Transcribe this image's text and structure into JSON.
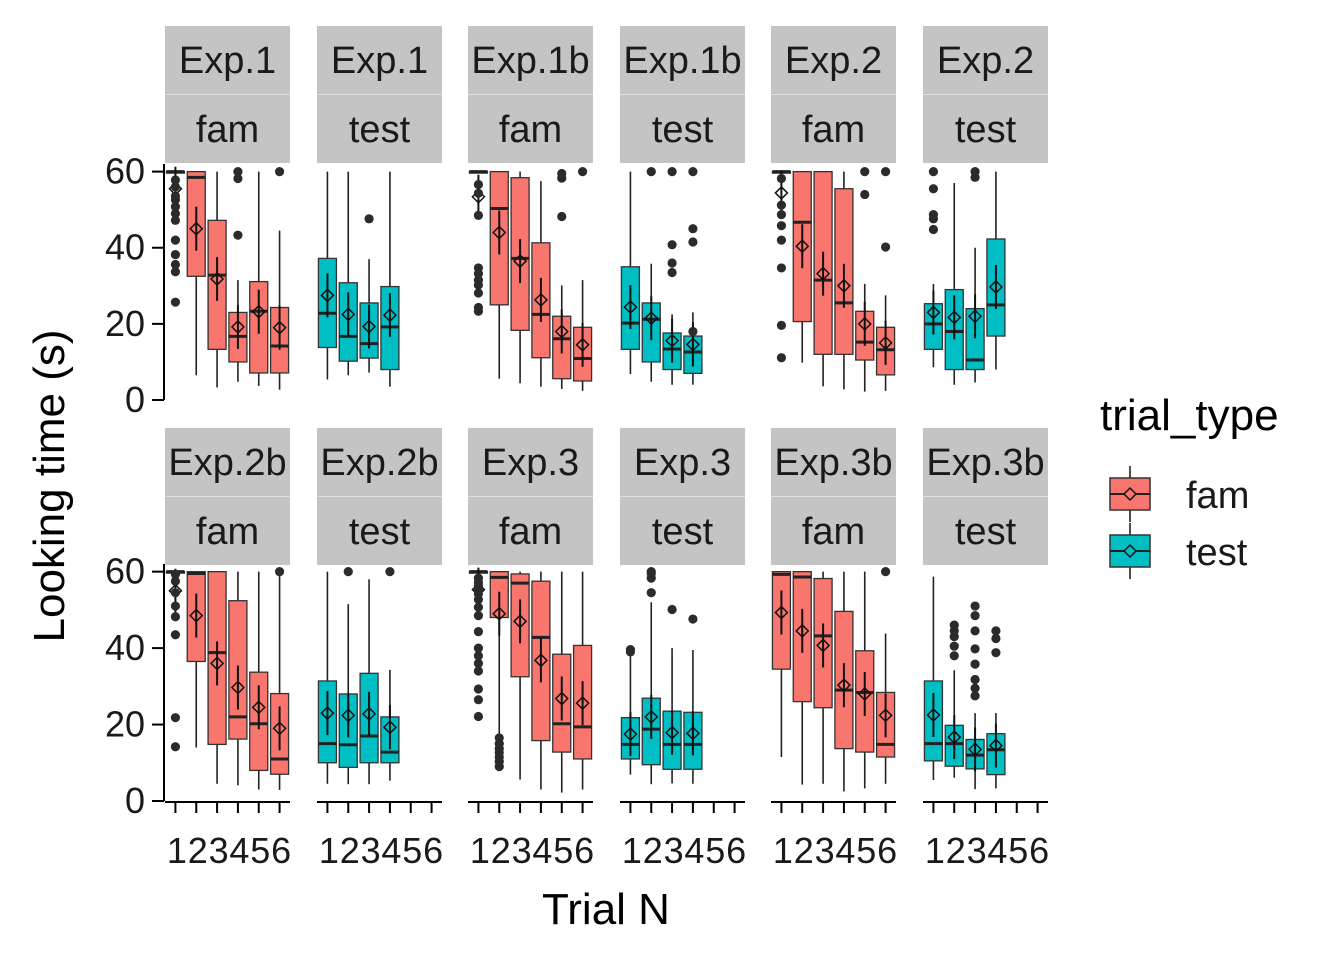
{
  "chart_data": {
    "type": "boxplot",
    "xlabel": "Trial N",
    "ylabel": "Looking time (s)",
    "x_ticks": [
      "1",
      "2",
      "3",
      "4",
      "5",
      "6"
    ],
    "y_ticks": [
      0,
      20,
      40,
      60
    ],
    "ylim": [
      0,
      62
    ],
    "xlim": [
      0.5,
      6.5
    ],
    "legend": {
      "title": "trial_type",
      "position": "right",
      "entries": [
        {
          "label": "fam",
          "color": "#F8766D"
        },
        {
          "label": "test",
          "color": "#00BFC4"
        }
      ]
    },
    "colors": {
      "fam": "#F8766D",
      "test": "#00BFC4",
      "strip": "#c4c4c4"
    },
    "grid": false,
    "panels": [
      {
        "experiment": "Exp.1",
        "trial_type": "fam",
        "row": 0,
        "col": 0,
        "trials": [
          {
            "n": 1,
            "q1": 60,
            "median": 60,
            "q3": 60,
            "lower": 60,
            "upper": 60,
            "mean": 55.5,
            "outliers": [
              25.7,
              33.7,
              35.6,
              38.2,
              42.0,
              47.2,
              49.0,
              50.8,
              52.6,
              53.6,
              56.0,
              57.8
            ]
          },
          {
            "n": 2,
            "q1": 32.5,
            "median": 58.5,
            "q3": 60,
            "lower": 6.5,
            "upper": 60,
            "mean": 45,
            "outliers": []
          },
          {
            "n": 3,
            "q1": 13.3,
            "median": 32.8,
            "q3": 47.2,
            "lower": 3.3,
            "upper": 60,
            "mean": 31.8,
            "outliers": []
          },
          {
            "n": 4,
            "q1": 10.0,
            "median": 16.7,
            "q3": 23.0,
            "lower": 4.8,
            "upper": 31.5,
            "mean": 19.2,
            "outliers": [
              43.3,
              58.2,
              60
            ]
          },
          {
            "n": 5,
            "q1": 7.1,
            "median": 23.3,
            "q3": 31.1,
            "lower": 3.7,
            "upper": 60,
            "mean": 23.2,
            "outliers": []
          },
          {
            "n": 6,
            "q1": 7.1,
            "median": 14.2,
            "q3": 24.3,
            "lower": 2.7,
            "upper": 44.5,
            "mean": 19.0,
            "outliers": [
              60
            ]
          }
        ]
      },
      {
        "experiment": "Exp.1",
        "trial_type": "test",
        "row": 0,
        "col": 1,
        "trials": [
          {
            "n": 1,
            "q1": 13.8,
            "median": 22.8,
            "q3": 37.2,
            "lower": 5.4,
            "upper": 60,
            "mean": 27.5,
            "outliers": []
          },
          {
            "n": 2,
            "q1": 10.2,
            "median": 16.7,
            "q3": 30.8,
            "lower": 6.5,
            "upper": 60,
            "mean": 22.5,
            "outliers": []
          },
          {
            "n": 3,
            "q1": 11.0,
            "median": 14.8,
            "q3": 25.5,
            "lower": 7.2,
            "upper": 37.0,
            "mean": 19.3,
            "outliers": [
              47.6
            ]
          },
          {
            "n": 4,
            "q1": 8.0,
            "median": 19.2,
            "q3": 29.8,
            "lower": 3.5,
            "upper": 60,
            "mean": 22.3,
            "outliers": []
          }
        ]
      },
      {
        "experiment": "Exp.1b",
        "trial_type": "fam",
        "row": 0,
        "col": 2,
        "trials": [
          {
            "n": 1,
            "q1": 60,
            "median": 60,
            "q3": 60,
            "lower": 60,
            "upper": 60,
            "mean": 53.4,
            "outliers": [
              23.3,
              24.3,
              28.1,
              30.2,
              31.5,
              33.2,
              34.7,
              48.5,
              54.3,
              56.6
            ]
          },
          {
            "n": 2,
            "q1": 25.0,
            "median": 50.3,
            "q3": 60,
            "lower": 5.6,
            "upper": 60,
            "mean": 44.0,
            "outliers": []
          },
          {
            "n": 3,
            "q1": 18.3,
            "median": 37.2,
            "q3": 58.4,
            "lower": 4.4,
            "upper": 60,
            "mean": 36.5,
            "outliers": []
          },
          {
            "n": 4,
            "q1": 11.1,
            "median": 22.5,
            "q3": 41.3,
            "lower": 3.5,
            "upper": 57.5,
            "mean": 26.3,
            "outliers": []
          },
          {
            "n": 5,
            "q1": 5.6,
            "median": 16.1,
            "q3": 22.0,
            "lower": 2.9,
            "upper": 30.1,
            "mean": 18.0,
            "outliers": [
              48.2,
              58.3,
              59.5
            ]
          },
          {
            "n": 6,
            "q1": 5.0,
            "median": 10.9,
            "q3": 19.1,
            "lower": 2.4,
            "upper": 31.5,
            "mean": 14.5,
            "outliers": [
              60
            ]
          }
        ]
      },
      {
        "experiment": "Exp.1b",
        "trial_type": "test",
        "row": 0,
        "col": 3,
        "trials": [
          {
            "n": 1,
            "q1": 13.3,
            "median": 20.2,
            "q3": 35.0,
            "lower": 6.8,
            "upper": 60,
            "mean": 24.4,
            "outliers": []
          },
          {
            "n": 2,
            "q1": 10.0,
            "median": 21.2,
            "q3": 25.5,
            "lower": 4.8,
            "upper": 35.8,
            "mean": 21.5,
            "outliers": [
              60
            ]
          },
          {
            "n": 3,
            "q1": 8.0,
            "median": 13.4,
            "q3": 17.6,
            "lower": 4.0,
            "upper": 22.5,
            "mean": 15.6,
            "outliers": [
              33.5,
              36.0,
              40.8,
              60
            ]
          },
          {
            "n": 4,
            "q1": 7.0,
            "median": 12.6,
            "q3": 16.8,
            "lower": 4.0,
            "upper": 23.0,
            "mean": 14.6,
            "outliers": [
              18.0,
              41.5,
              45.0,
              60
            ]
          }
        ]
      },
      {
        "experiment": "Exp.2",
        "trial_type": "fam",
        "row": 0,
        "col": 4,
        "trials": [
          {
            "n": 1,
            "q1": 60,
            "median": 60,
            "q3": 60,
            "lower": 60,
            "upper": 60,
            "mean": 54.4,
            "outliers": [
              11.1,
              19.6,
              34.7,
              42.0,
              45.8,
              48.7,
              51.2,
              58.2
            ]
          },
          {
            "n": 2,
            "q1": 20.6,
            "median": 46.7,
            "q3": 60,
            "lower": 9.8,
            "upper": 60,
            "mean": 40.4,
            "outliers": []
          },
          {
            "n": 3,
            "q1": 12.0,
            "median": 31.5,
            "q3": 60,
            "lower": 3.6,
            "upper": 60,
            "mean": 33.2,
            "outliers": []
          },
          {
            "n": 4,
            "q1": 12.0,
            "median": 25.5,
            "q3": 55.5,
            "lower": 2.8,
            "upper": 60,
            "mean": 30.0,
            "outliers": []
          },
          {
            "n": 5,
            "q1": 10.5,
            "median": 15.2,
            "q3": 23.3,
            "lower": 2.2,
            "upper": 30.5,
            "mean": 20.0,
            "outliers": [
              54.0,
              60
            ]
          },
          {
            "n": 6,
            "q1": 6.6,
            "median": 13.2,
            "q3": 19.1,
            "lower": 2.4,
            "upper": 27.5,
            "mean": 15.0,
            "outliers": [
              40.2,
              60
            ]
          }
        ]
      },
      {
        "experiment": "Exp.2",
        "trial_type": "test",
        "row": 0,
        "col": 5,
        "trials": [
          {
            "n": 1,
            "q1": 13.3,
            "median": 20.0,
            "q3": 25.3,
            "lower": 8.6,
            "upper": 30.5,
            "mean": 23.0,
            "outliers": [
              44.8,
              47.6,
              48.7,
              55.5,
              60
            ]
          },
          {
            "n": 2,
            "q1": 8.0,
            "median": 18.0,
            "q3": 29.0,
            "lower": 4.0,
            "upper": 57.0,
            "mean": 21.7,
            "outliers": []
          },
          {
            "n": 3,
            "q1": 8.0,
            "median": 10.5,
            "q3": 24.0,
            "lower": 4.6,
            "upper": 40.0,
            "mean": 22.0,
            "outliers": [
              58.5,
              60
            ]
          },
          {
            "n": 4,
            "q1": 16.8,
            "median": 25.0,
            "q3": 42.3,
            "lower": 8.0,
            "upper": 60,
            "mean": 29.7,
            "outliers": []
          }
        ]
      },
      {
        "experiment": "Exp.2b",
        "trial_type": "fam",
        "row": 1,
        "col": 0,
        "trials": [
          {
            "n": 1,
            "q1": 60,
            "median": 60,
            "q3": 60,
            "lower": 60,
            "upper": 60,
            "mean": 55.0,
            "outliers": [
              14.2,
              21.8,
              43.5,
              48.2,
              51.0,
              54.5,
              57.5,
              59.3
            ]
          },
          {
            "n": 2,
            "q1": 36.5,
            "median": 59.5,
            "q3": 60,
            "lower": 14.0,
            "upper": 60,
            "mean": 48.5,
            "outliers": []
          },
          {
            "n": 3,
            "q1": 14.8,
            "median": 38.8,
            "q3": 60,
            "lower": 4.5,
            "upper": 60,
            "mean": 36.0,
            "outliers": []
          },
          {
            "n": 4,
            "q1": 16.2,
            "median": 22.0,
            "q3": 52.4,
            "lower": 4.1,
            "upper": 60,
            "mean": 29.7,
            "outliers": []
          },
          {
            "n": 5,
            "q1": 8.0,
            "median": 20.2,
            "q3": 33.7,
            "lower": 3.0,
            "upper": 60,
            "mean": 24.5,
            "outliers": []
          },
          {
            "n": 6,
            "q1": 7.0,
            "median": 11.0,
            "q3": 28.1,
            "lower": 2.9,
            "upper": 59.5,
            "mean": 19.0,
            "outliers": [
              60
            ]
          }
        ]
      },
      {
        "experiment": "Exp.2b",
        "trial_type": "test",
        "row": 1,
        "col": 1,
        "trials": [
          {
            "n": 1,
            "q1": 10.0,
            "median": 15.0,
            "q3": 31.4,
            "lower": 4.5,
            "upper": 60,
            "mean": 23.0,
            "outliers": []
          },
          {
            "n": 2,
            "q1": 8.8,
            "median": 14.7,
            "q3": 28.0,
            "lower": 4.4,
            "upper": 51.5,
            "mean": 22.4,
            "outliers": [
              60
            ]
          },
          {
            "n": 3,
            "q1": 10.0,
            "median": 17.0,
            "q3": 33.4,
            "lower": 4.4,
            "upper": 58.0,
            "mean": 22.8,
            "outliers": []
          },
          {
            "n": 4,
            "q1": 10.0,
            "median": 12.8,
            "q3": 22.0,
            "lower": 5.3,
            "upper": 34.3,
            "mean": 19.3,
            "outliers": [
              60
            ]
          }
        ]
      },
      {
        "experiment": "Exp.3",
        "trial_type": "fam",
        "row": 1,
        "col": 2,
        "trials": [
          {
            "n": 1,
            "q1": 60,
            "median": 60,
            "q3": 60,
            "lower": 60,
            "upper": 60,
            "mean": 55.3,
            "outliers": [
              22.1,
              26.5,
              29.3,
              34.0,
              36.0,
              38.0,
              40.0,
              44.3,
              48.5,
              50.7,
              52.7,
              54.2,
              55.2,
              56.3,
              57.2,
              58.3
            ]
          },
          {
            "n": 2,
            "q1": 48.0,
            "median": 58.5,
            "q3": 60,
            "lower": 17.0,
            "upper": 60,
            "mean": 49.0,
            "outliers": [
              9.0,
              10.3,
              11.5,
              12.7,
              13.7,
              15.0,
              16.5
            ]
          },
          {
            "n": 3,
            "q1": 32.5,
            "median": 57.0,
            "q3": 59.4,
            "lower": 5.6,
            "upper": 60,
            "mean": 47.0,
            "outliers": []
          },
          {
            "n": 4,
            "q1": 15.8,
            "median": 42.8,
            "q3": 57.5,
            "lower": 3.0,
            "upper": 60,
            "mean": 36.8,
            "outliers": []
          },
          {
            "n": 5,
            "q1": 12.8,
            "median": 20.2,
            "q3": 38.4,
            "lower": 2.2,
            "upper": 60,
            "mean": 26.8,
            "outliers": []
          },
          {
            "n": 6,
            "q1": 11.0,
            "median": 19.4,
            "q3": 40.7,
            "lower": 3.0,
            "upper": 60,
            "mean": 25.6,
            "outliers": []
          }
        ]
      },
      {
        "experiment": "Exp.3",
        "trial_type": "test",
        "row": 1,
        "col": 3,
        "trials": [
          {
            "n": 1,
            "q1": 11.0,
            "median": 14.8,
            "q3": 21.8,
            "lower": 6.9,
            "upper": 38.0,
            "mean": 17.5,
            "outliers": [
              39.0,
              39.6
            ]
          },
          {
            "n": 2,
            "q1": 9.5,
            "median": 18.8,
            "q3": 26.9,
            "lower": 4.4,
            "upper": 52.0,
            "mean": 22.0,
            "outliers": [
              54.5,
              58.3,
              59.5,
              60
            ]
          },
          {
            "n": 3,
            "q1": 8.3,
            "median": 14.8,
            "q3": 23.5,
            "lower": 4.6,
            "upper": 40.0,
            "mean": 17.9,
            "outliers": [
              50.1
            ]
          },
          {
            "n": 4,
            "q1": 8.3,
            "median": 14.8,
            "q3": 23.2,
            "lower": 4.5,
            "upper": 39.5,
            "mean": 17.7,
            "outliers": [
              47.6
            ]
          }
        ]
      },
      {
        "experiment": "Exp.3b",
        "trial_type": "fam",
        "row": 1,
        "col": 4,
        "trials": [
          {
            "n": 1,
            "q1": 34.5,
            "median": 59.3,
            "q3": 60,
            "lower": 11.5,
            "upper": 60,
            "mean": 49.3,
            "outliers": []
          },
          {
            "n": 2,
            "q1": 26.0,
            "median": 58.6,
            "q3": 60,
            "lower": 4.3,
            "upper": 60,
            "mean": 44.5,
            "outliers": []
          },
          {
            "n": 3,
            "q1": 24.4,
            "median": 43.2,
            "q3": 58.2,
            "lower": 4.5,
            "upper": 60,
            "mean": 40.7,
            "outliers": []
          },
          {
            "n": 4,
            "q1": 13.7,
            "median": 29.0,
            "q3": 49.6,
            "lower": 2.5,
            "upper": 60,
            "mean": 30.3,
            "outliers": []
          },
          {
            "n": 5,
            "q1": 12.8,
            "median": 28.4,
            "q3": 39.3,
            "lower": 3.3,
            "upper": 60,
            "mean": 28.0,
            "outliers": []
          },
          {
            "n": 6,
            "q1": 11.5,
            "median": 14.8,
            "q3": 28.4,
            "lower": 4.5,
            "upper": 43.8,
            "mean": 22.4,
            "outliers": [
              60
            ]
          }
        ]
      },
      {
        "experiment": "Exp.3b",
        "trial_type": "test",
        "row": 1,
        "col": 5,
        "trials": [
          {
            "n": 1,
            "q1": 10.5,
            "median": 15.0,
            "q3": 31.4,
            "lower": 5.5,
            "upper": 58.7,
            "mean": 22.5,
            "outliers": []
          },
          {
            "n": 2,
            "q1": 9.1,
            "median": 15.0,
            "q3": 19.8,
            "lower": 6.1,
            "upper": 34.2,
            "mean": 16.7,
            "outliers": [
              38.0,
              40.5,
              43.0,
              44.5,
              46.0
            ]
          },
          {
            "n": 3,
            "q1": 8.4,
            "median": 12.0,
            "q3": 16.1,
            "lower": 3.1,
            "upper": 23.0,
            "mean": 13.5,
            "outliers": [
              27.5,
              29.5,
              31.8,
              35.8,
              39.8,
              44.5,
              48.5,
              51.0
            ]
          },
          {
            "n": 4,
            "q1": 6.9,
            "median": 13.4,
            "q3": 17.6,
            "lower": 3.3,
            "upper": 23.0,
            "mean": 14.5,
            "outliers": [
              38.8,
              42.5,
              44.5
            ]
          }
        ]
      }
    ]
  }
}
